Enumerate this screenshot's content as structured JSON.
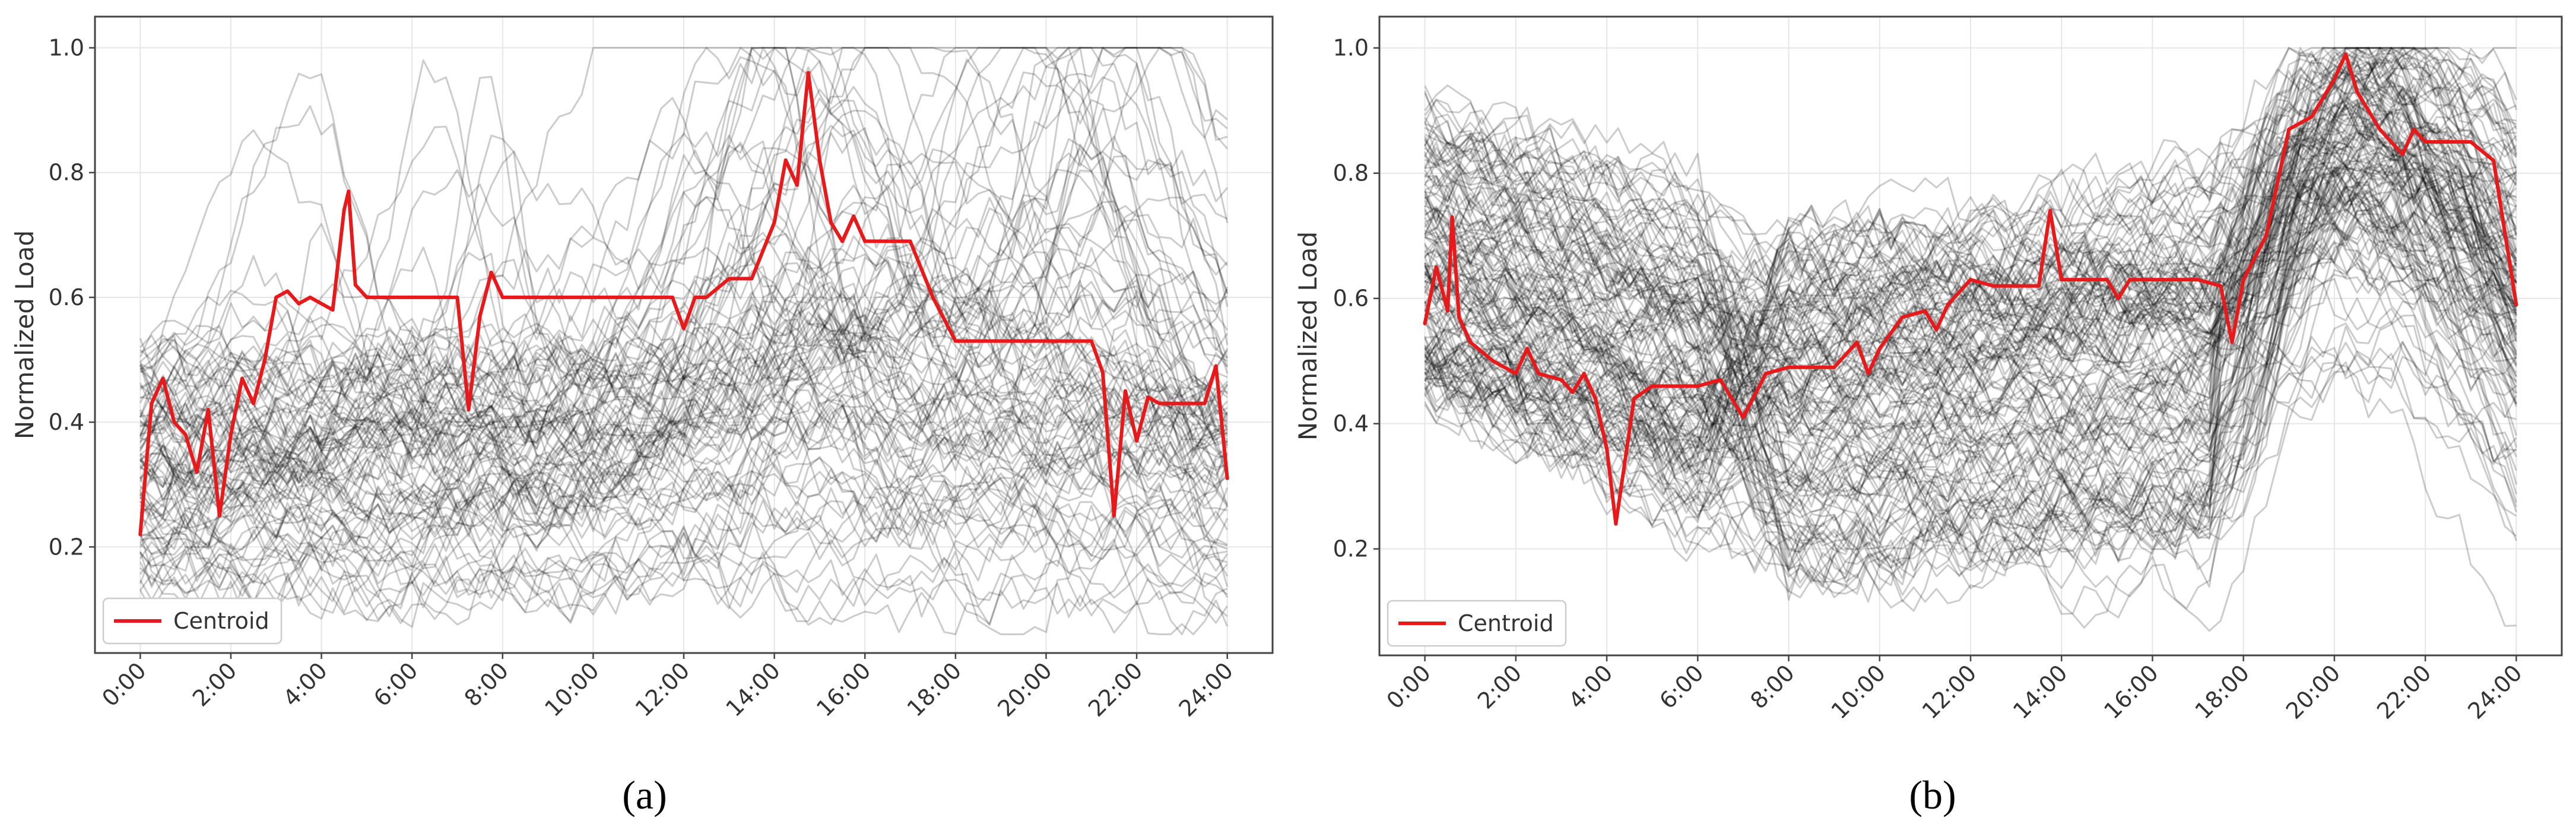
{
  "figure_caption_labels": [
    "(a)",
    "(b)"
  ],
  "chart_data": [
    {
      "type": "line",
      "panel_label": "(a)",
      "title": "",
      "xlabel": "",
      "ylabel": "Normalized Load",
      "xlim": [
        -1,
        25
      ],
      "ylim": [
        0.03,
        1.05
      ],
      "xticks": [
        0,
        2,
        4,
        6,
        8,
        10,
        12,
        14,
        16,
        18,
        20,
        22,
        24
      ],
      "xtick_labels": [
        "0:00",
        "2:00",
        "4:00",
        "6:00",
        "8:00",
        "10:00",
        "12:00",
        "14:00",
        "16:00",
        "18:00",
        "20:00",
        "22:00",
        "24:00"
      ],
      "yticks": [
        0.2,
        0.4,
        0.6,
        0.8,
        1.0
      ],
      "ytick_labels": [
        "0.2",
        "0.4",
        "0.6",
        "0.8",
        "1.0"
      ],
      "grid": true,
      "legend": {
        "position": "lower-left",
        "entries": [
          "Centroid"
        ]
      },
      "colors": {
        "centroid": "#e8191b",
        "members": "#000000",
        "grid": "#e6e6e6"
      },
      "members_count": 95,
      "members_seed": 7,
      "members_style": "a",
      "series": [
        {
          "name": "Centroid",
          "x": [
            0,
            0.25,
            0.5,
            0.75,
            1.0,
            1.25,
            1.5,
            1.75,
            2.0,
            2.25,
            2.5,
            2.75,
            3.0,
            3.25,
            3.5,
            3.75,
            4.0,
            4.25,
            4.5,
            4.6,
            4.75,
            5.0,
            5.5,
            6.0,
            6.5,
            7.0,
            7.25,
            7.5,
            7.75,
            8.0,
            8.25,
            8.5,
            9.0,
            10.0,
            11.0,
            11.75,
            12.0,
            12.25,
            12.5,
            13.0,
            13.5,
            14.0,
            14.25,
            14.5,
            14.75,
            15.0,
            15.25,
            15.5,
            15.75,
            16.0,
            16.5,
            17.0,
            17.5,
            18.0,
            19.0,
            20.0,
            21.0,
            21.25,
            21.5,
            21.75,
            22.0,
            22.25,
            22.5,
            23.0,
            23.5,
            23.75,
            24.0
          ],
          "y": [
            0.22,
            0.43,
            0.47,
            0.4,
            0.38,
            0.32,
            0.42,
            0.25,
            0.38,
            0.47,
            0.43,
            0.5,
            0.6,
            0.61,
            0.59,
            0.6,
            0.59,
            0.58,
            0.74,
            0.77,
            0.62,
            0.6,
            0.6,
            0.6,
            0.6,
            0.6,
            0.42,
            0.57,
            0.64,
            0.6,
            0.6,
            0.6,
            0.6,
            0.6,
            0.6,
            0.6,
            0.55,
            0.6,
            0.6,
            0.63,
            0.63,
            0.72,
            0.82,
            0.78,
            0.96,
            0.82,
            0.72,
            0.69,
            0.73,
            0.69,
            0.69,
            0.69,
            0.6,
            0.53,
            0.53,
            0.53,
            0.53,
            0.48,
            0.25,
            0.45,
            0.37,
            0.44,
            0.43,
            0.43,
            0.43,
            0.49,
            0.31
          ]
        }
      ]
    },
    {
      "type": "line",
      "panel_label": "(b)",
      "title": "",
      "xlabel": "",
      "ylabel": "Normalized Load",
      "xlim": [
        -1,
        25
      ],
      "ylim": [
        0.03,
        1.05
      ],
      "xticks": [
        0,
        2,
        4,
        6,
        8,
        10,
        12,
        14,
        16,
        18,
        20,
        22,
        24
      ],
      "xtick_labels": [
        "0:00",
        "2:00",
        "4:00",
        "6:00",
        "8:00",
        "10:00",
        "12:00",
        "14:00",
        "16:00",
        "18:00",
        "20:00",
        "22:00",
        "24:00"
      ],
      "yticks": [
        0.2,
        0.4,
        0.6,
        0.8,
        1.0
      ],
      "ytick_labels": [
        "0.2",
        "0.4",
        "0.6",
        "0.8",
        "1.0"
      ],
      "grid": true,
      "legend": {
        "position": "lower-left",
        "entries": [
          "Centroid"
        ]
      },
      "colors": {
        "centroid": "#e8191b",
        "members": "#000000",
        "grid": "#e6e6e6"
      },
      "members_count": 150,
      "members_seed": 19,
      "members_style": "b",
      "series": [
        {
          "name": "Centroid",
          "x": [
            0,
            0.25,
            0.5,
            0.6,
            0.75,
            1.0,
            1.5,
            2.0,
            2.25,
            2.5,
            3.0,
            3.25,
            3.5,
            3.75,
            4.0,
            4.2,
            4.4,
            4.6,
            5.0,
            5.5,
            6.0,
            6.5,
            7.0,
            7.5,
            8.0,
            9.0,
            9.5,
            9.75,
            10.0,
            10.5,
            11.0,
            11.25,
            11.5,
            12.0,
            12.5,
            13.0,
            13.5,
            13.75,
            14.0,
            14.5,
            15.0,
            15.25,
            15.5,
            16.0,
            16.5,
            17.0,
            17.5,
            17.75,
            18.0,
            18.5,
            19.0,
            19.5,
            20.0,
            20.25,
            20.5,
            21.0,
            21.5,
            21.75,
            22.0,
            23.0,
            23.5,
            24.0
          ],
          "y": [
            0.56,
            0.65,
            0.58,
            0.73,
            0.57,
            0.53,
            0.5,
            0.48,
            0.52,
            0.48,
            0.47,
            0.45,
            0.48,
            0.44,
            0.36,
            0.24,
            0.34,
            0.44,
            0.46,
            0.46,
            0.46,
            0.47,
            0.41,
            0.48,
            0.49,
            0.49,
            0.53,
            0.48,
            0.52,
            0.57,
            0.58,
            0.55,
            0.59,
            0.63,
            0.62,
            0.62,
            0.62,
            0.74,
            0.63,
            0.63,
            0.63,
            0.6,
            0.63,
            0.63,
            0.63,
            0.63,
            0.62,
            0.53,
            0.63,
            0.7,
            0.87,
            0.89,
            0.95,
            0.99,
            0.93,
            0.87,
            0.83,
            0.87,
            0.85,
            0.85,
            0.82,
            0.59
          ]
        }
      ]
    }
  ]
}
